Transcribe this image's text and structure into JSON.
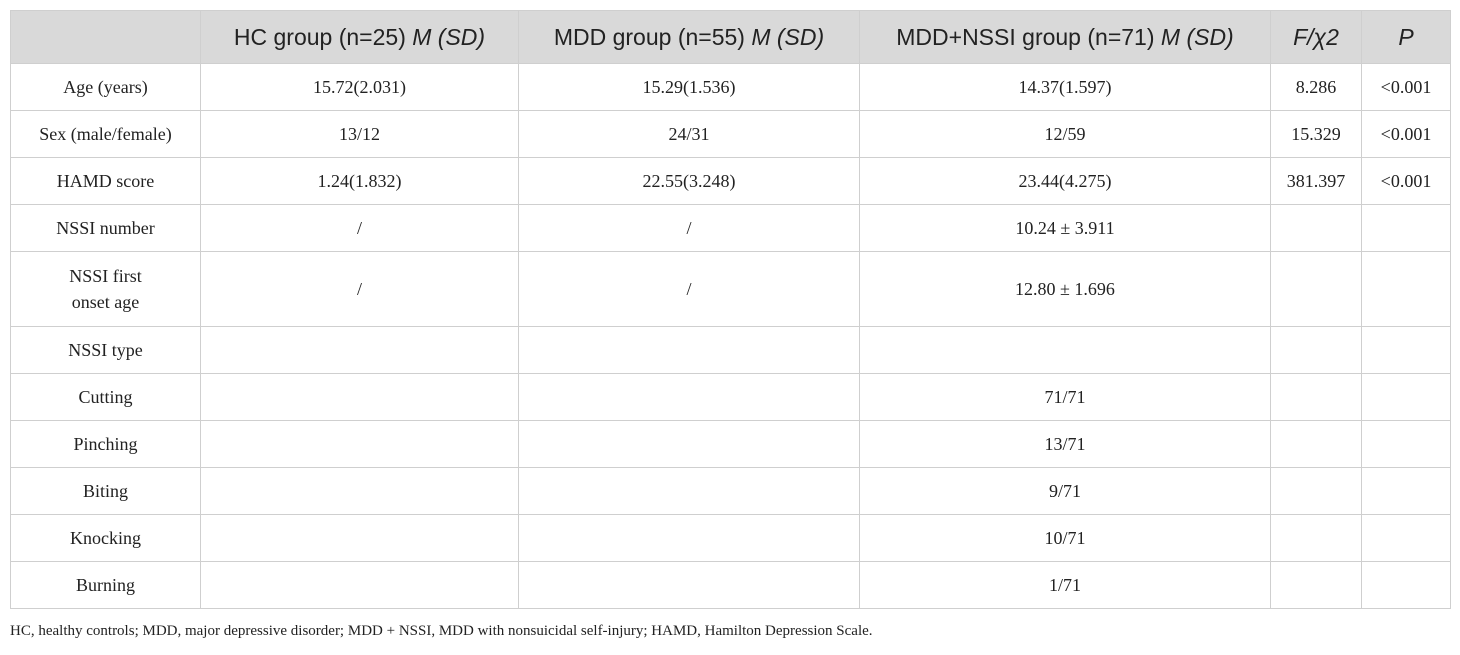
{
  "header": {
    "col0": "",
    "col1_text": "HC group (n=25) ",
    "col1_stat": "M (SD)",
    "col2_text": "MDD group (n=55) ",
    "col2_stat": "M (SD)",
    "col3_text": "MDD+NSSI group (n=71) ",
    "col3_stat": "M (SD)",
    "col4": "F/χ2",
    "col5": "P"
  },
  "rows": [
    {
      "label": "Age (years)",
      "hc": "15.72(2.031)",
      "mdd": "15.29(1.536)",
      "nssi": "14.37(1.597)",
      "f": "8.286",
      "p": "<0.001"
    },
    {
      "label": "Sex (male/female)",
      "hc": "13/12",
      "mdd": "24/31",
      "nssi": "12/59",
      "f": "15.329",
      "p": "<0.001"
    },
    {
      "label": "HAMD score",
      "hc": "1.24(1.832)",
      "mdd": "22.55(3.248)",
      "nssi": "23.44(4.275)",
      "f": "381.397",
      "p": "<0.001"
    },
    {
      "label": "NSSI number",
      "hc": "/",
      "mdd": "/",
      "nssi": "10.24 ± 3.911",
      "f": "",
      "p": ""
    },
    {
      "label_line1": "NSSI first",
      "label_line2": "onset age",
      "hc": "/",
      "mdd": "/",
      "nssi": "12.80 ± 1.696",
      "f": "",
      "p": ""
    },
    {
      "label": "NSSI type",
      "hc": "",
      "mdd": "",
      "nssi": "",
      "f": "",
      "p": ""
    },
    {
      "label": "Cutting",
      "hc": "",
      "mdd": "",
      "nssi": "71/71",
      "f": "",
      "p": ""
    },
    {
      "label": "Pinching",
      "hc": "",
      "mdd": "",
      "nssi": "13/71",
      "f": "",
      "p": ""
    },
    {
      "label": "Biting",
      "hc": "",
      "mdd": "",
      "nssi": "9/71",
      "f": "",
      "p": ""
    },
    {
      "label": "Knocking",
      "hc": "",
      "mdd": "",
      "nssi": "10/71",
      "f": "",
      "p": ""
    },
    {
      "label": "Burning",
      "hc": "",
      "mdd": "",
      "nssi": "1/71",
      "f": "",
      "p": ""
    }
  ],
  "footnote": "HC, healthy controls; MDD, major depressive disorder; MDD + NSSI, MDD with nonsuicidal self-injury; HAMD, Hamilton Depression Scale."
}
